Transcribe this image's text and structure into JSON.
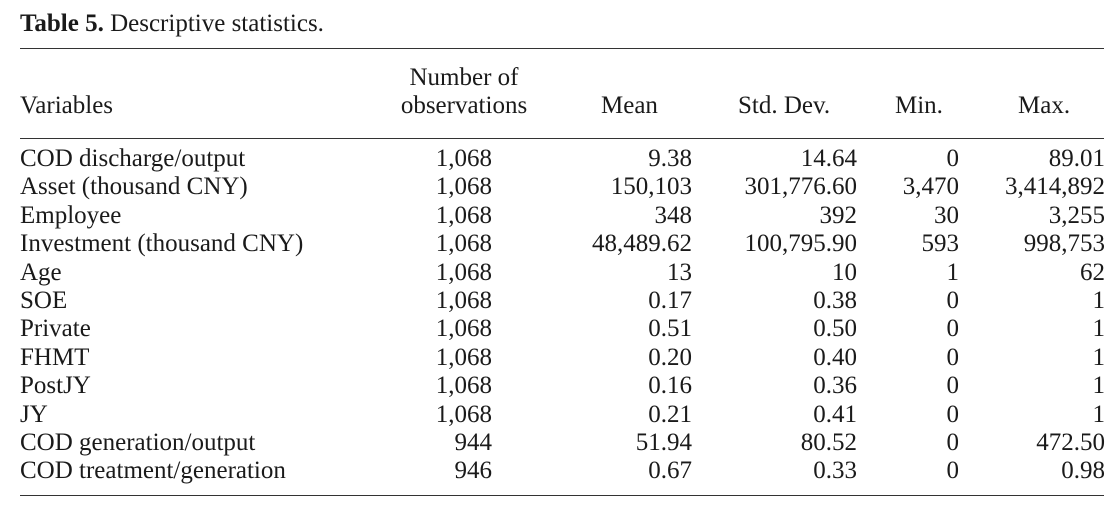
{
  "caption": {
    "label": "Table 5.",
    "text": " Descriptive statistics."
  },
  "header": {
    "variables": "Variables",
    "obs_line1": "Number of",
    "obs_line2": "observations",
    "mean": "Mean",
    "std": "Std. Dev.",
    "min": "Min.",
    "max": "Max."
  },
  "rows": [
    {
      "variable": "COD discharge/output",
      "obs": "1,068",
      "mean": "9.38",
      "std": "14.64",
      "min": "0",
      "max": "89.01"
    },
    {
      "variable": "Asset (thousand CNY)",
      "obs": "1,068",
      "mean": "150,103",
      "std": "301,776.60",
      "min": "3,470",
      "max": "3,414,892"
    },
    {
      "variable": "Employee",
      "obs": "1,068",
      "mean": "348",
      "std": "392",
      "min": "30",
      "max": "3,255"
    },
    {
      "variable": "Investment (thousand CNY)",
      "obs": "1,068",
      "mean": "48,489.62",
      "std": "100,795.90",
      "min": "593",
      "max": "998,753"
    },
    {
      "variable": "Age",
      "obs": "1,068",
      "mean": "13",
      "std": "10",
      "min": "1",
      "max": "62"
    },
    {
      "variable": "SOE",
      "obs": "1,068",
      "mean": "0.17",
      "std": "0.38",
      "min": "0",
      "max": "1"
    },
    {
      "variable": "Private",
      "obs": "1,068",
      "mean": "0.51",
      "std": "0.50",
      "min": "0",
      "max": "1"
    },
    {
      "variable": "FHMT",
      "obs": "1,068",
      "mean": "0.20",
      "std": "0.40",
      "min": "0",
      "max": "1"
    },
    {
      "variable": "PostJY",
      "obs": "1,068",
      "mean": "0.16",
      "std": "0.36",
      "min": "0",
      "max": "1"
    },
    {
      "variable": "JY",
      "obs": "1,068",
      "mean": "0.21",
      "std": "0.41",
      "min": "0",
      "max": "1"
    },
    {
      "variable": "COD generation/output",
      "obs": "944",
      "mean": "51.94",
      "std": "80.52",
      "min": "0",
      "max": "472.50"
    },
    {
      "variable": "COD treatment/generation",
      "obs": "946",
      "mean": "0.67",
      "std": "0.33",
      "min": "0",
      "max": "0.98"
    }
  ]
}
